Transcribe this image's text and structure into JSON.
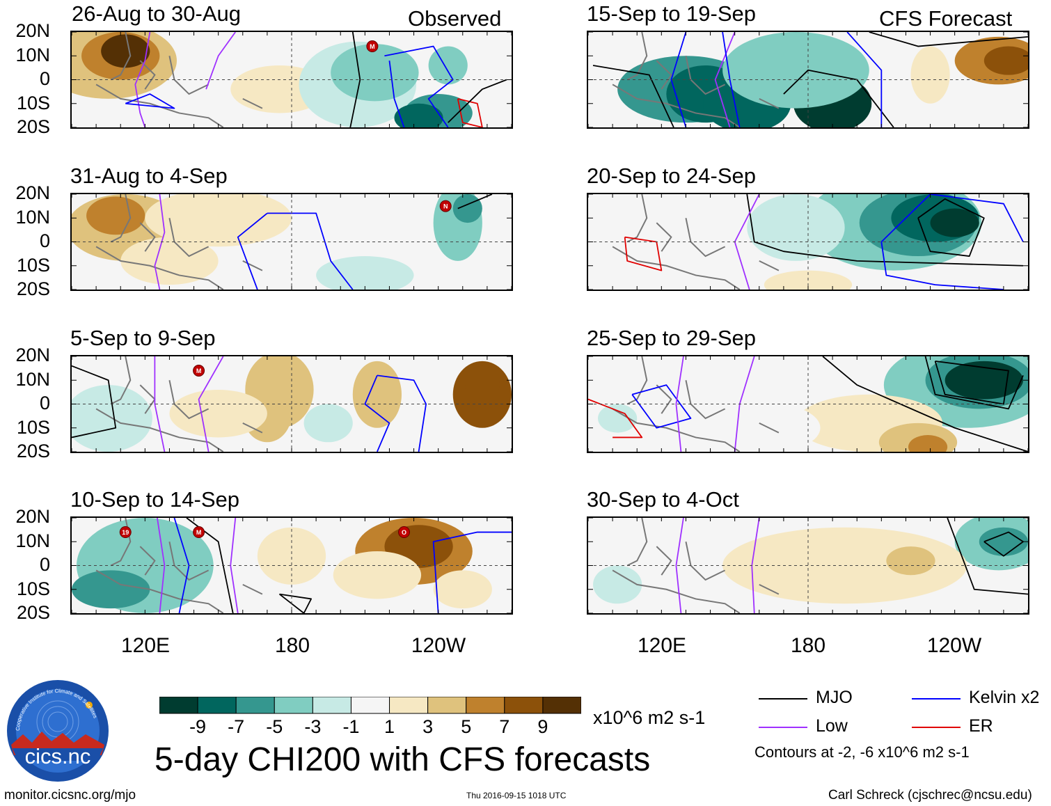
{
  "chart_data": {
    "type": "heatmap",
    "title": "5-day CHI200 with CFS forecasts",
    "units": "x10^6 m2 s-1",
    "column_headers": [
      "Observed",
      "CFS Forecast"
    ],
    "y_ticks": [
      "20N",
      "10N",
      "0",
      "10S",
      "20S"
    ],
    "x_ticks": [
      "120E",
      "180",
      "120W"
    ],
    "colorbar": {
      "ticks": [
        "-9",
        "-7",
        "-5",
        "-3",
        "-1",
        "1",
        "3",
        "5",
        "7",
        "9"
      ],
      "colors": [
        "#003c30",
        "#01665e",
        "#35978f",
        "#80cdc1",
        "#c7eae5",
        "#f5f5f5",
        "#f6e8c3",
        "#dfc27d",
        "#bf812d",
        "#8c510a",
        "#543005"
      ]
    },
    "panels": [
      {
        "id": "p1",
        "title": "26-Aug to 30-Aug",
        "source": "Observed",
        "storms": [
          {
            "label": "M",
            "lon": 213,
            "lat": 14
          }
        ]
      },
      {
        "id": "p2",
        "title": "31-Aug to 4-Sep",
        "source": "Observed",
        "storms": [
          {
            "label": "N",
            "lon": 243,
            "lat": 15
          }
        ]
      },
      {
        "id": "p3",
        "title": "5-Sep to 9-Sep",
        "source": "Observed",
        "storms": [
          {
            "label": "M",
            "lon": 142,
            "lat": 14
          }
        ]
      },
      {
        "id": "p4",
        "title": "10-Sep to 14-Sep",
        "source": "Observed",
        "storms": [
          {
            "label": "19",
            "lon": 112,
            "lat": 14
          },
          {
            "label": "M",
            "lon": 142,
            "lat": 14
          },
          {
            "label": "O",
            "lon": 226,
            "lat": 14
          }
        ]
      },
      {
        "id": "p5",
        "title": "15-Sep to 19-Sep",
        "source": "CFS Forecast",
        "storms": []
      },
      {
        "id": "p6",
        "title": "20-Sep to 24-Sep",
        "source": "CFS Forecast",
        "storms": []
      },
      {
        "id": "p7",
        "title": "25-Sep to 29-Sep",
        "source": "CFS Forecast",
        "storms": []
      },
      {
        "id": "p8",
        "title": "30-Sep to 4-Oct",
        "source": "CFS Forecast",
        "storms": []
      }
    ],
    "legend": [
      {
        "label": "MJO",
        "color": "#000000"
      },
      {
        "label": "Kelvin x2",
        "color": "#0000ff"
      },
      {
        "label": "Low",
        "color": "#9f30ff"
      },
      {
        "label": "ER",
        "color": "#e00000"
      }
    ],
    "contour_note": "Contours at -2, -6 x10^6 m2 s-1"
  },
  "footer": {
    "left": "monitor.cicsnc.org/mjo",
    "center": "Thu 2016-09-15 1018 UTC",
    "right": "Carl Schreck (cjschrec@ncsu.edu)"
  },
  "logo": {
    "ring_text": "Cooperative Institute for Climate and Satellites",
    "name": "cics.nc"
  }
}
